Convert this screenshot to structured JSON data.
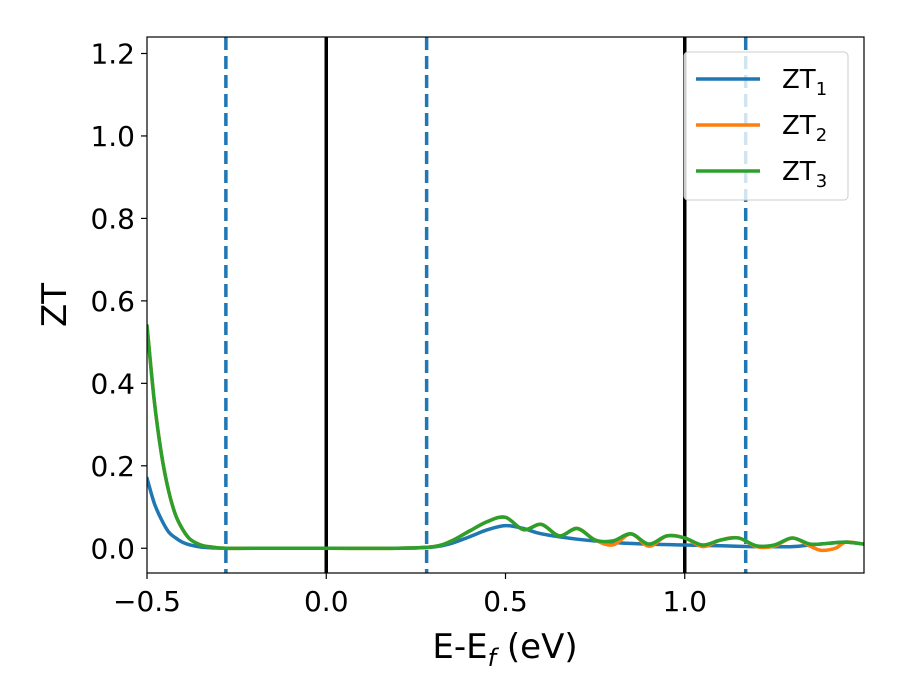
{
  "chart_data": {
    "type": "line",
    "xlabel": "E-E",
    "xlabel_sub": "f",
    "xlabel_unit": " (eV)",
    "ylabel": "ZT",
    "xlim": [
      -0.5,
      1.5
    ],
    "ylim": [
      -0.06,
      1.24
    ],
    "x_ticks": [
      -0.5,
      0.0,
      0.5,
      1.0
    ],
    "x_tick_labels": [
      "−0.5",
      "0.0",
      "0.5",
      "1.0"
    ],
    "y_ticks": [
      0.0,
      0.2,
      0.4,
      0.6,
      0.8,
      1.0,
      1.2
    ],
    "y_tick_labels": [
      "0.0",
      "0.2",
      "0.4",
      "0.6",
      "0.8",
      "1.0",
      "1.2"
    ],
    "grid": false,
    "legend_position": "top-right",
    "vlines_solid": [
      0.0,
      1.0
    ],
    "vlines_dashed": [
      -0.28,
      0.28,
      1.17
    ],
    "series": [
      {
        "name": "ZT",
        "name_sub": "1",
        "color": "#1f77b4",
        "x": [
          -0.5,
          -0.48,
          -0.46,
          -0.44,
          -0.42,
          -0.4,
          -0.38,
          -0.35,
          -0.32,
          -0.28,
          -0.2,
          0.0,
          0.2,
          0.3,
          0.35,
          0.4,
          0.45,
          0.5,
          0.55,
          0.6,
          0.7,
          0.8,
          0.9,
          1.0,
          1.1,
          1.2,
          1.3,
          1.35,
          1.4,
          1.45,
          1.5
        ],
        "y": [
          0.17,
          0.11,
          0.07,
          0.04,
          0.025,
          0.014,
          0.008,
          0.003,
          0.001,
          0.0,
          0.0,
          0.0,
          0.0,
          0.003,
          0.012,
          0.028,
          0.045,
          0.055,
          0.048,
          0.035,
          0.022,
          0.014,
          0.01,
          0.008,
          0.006,
          0.004,
          0.004,
          0.008,
          0.012,
          0.015,
          0.01
        ]
      },
      {
        "name": "ZT",
        "name_sub": "2",
        "color": "#ff7f0e",
        "x": [
          -0.5,
          -0.48,
          -0.46,
          -0.44,
          -0.42,
          -0.4,
          -0.38,
          -0.35,
          -0.32,
          -0.28,
          -0.2,
          0.0,
          0.2,
          0.3,
          0.35,
          0.4,
          0.45,
          0.5,
          0.55,
          0.6,
          0.65,
          0.7,
          0.75,
          0.8,
          0.85,
          0.9,
          0.95,
          1.0,
          1.05,
          1.1,
          1.15,
          1.2,
          1.25,
          1.3,
          1.35,
          1.38,
          1.42,
          1.45,
          1.5
        ],
        "y": [
          0.54,
          0.36,
          0.23,
          0.14,
          0.08,
          0.045,
          0.022,
          0.008,
          0.003,
          0.0,
          0.0,
          0.0,
          0.0,
          0.004,
          0.018,
          0.042,
          0.065,
          0.075,
          0.045,
          0.058,
          0.03,
          0.048,
          0.02,
          0.008,
          0.035,
          0.005,
          0.03,
          0.025,
          0.004,
          0.02,
          0.025,
          0.004,
          0.005,
          0.025,
          0.005,
          -0.005,
          0.0,
          0.015,
          0.01
        ]
      },
      {
        "name": "ZT",
        "name_sub": "3",
        "color": "#2ca02c",
        "x": [
          -0.5,
          -0.48,
          -0.46,
          -0.44,
          -0.42,
          -0.4,
          -0.38,
          -0.35,
          -0.32,
          -0.28,
          -0.2,
          0.0,
          0.2,
          0.3,
          0.35,
          0.4,
          0.45,
          0.5,
          0.55,
          0.6,
          0.65,
          0.7,
          0.75,
          0.8,
          0.85,
          0.9,
          0.95,
          1.0,
          1.05,
          1.1,
          1.15,
          1.2,
          1.25,
          1.3,
          1.35,
          1.4,
          1.45,
          1.5
        ],
        "y": [
          0.54,
          0.36,
          0.23,
          0.14,
          0.08,
          0.045,
          0.022,
          0.008,
          0.003,
          0.0,
          0.0,
          0.0,
          0.0,
          0.004,
          0.018,
          0.042,
          0.065,
          0.075,
          0.045,
          0.058,
          0.03,
          0.048,
          0.02,
          0.018,
          0.035,
          0.01,
          0.03,
          0.025,
          0.008,
          0.02,
          0.025,
          0.006,
          0.008,
          0.025,
          0.01,
          0.012,
          0.015,
          0.01
        ]
      }
    ]
  }
}
